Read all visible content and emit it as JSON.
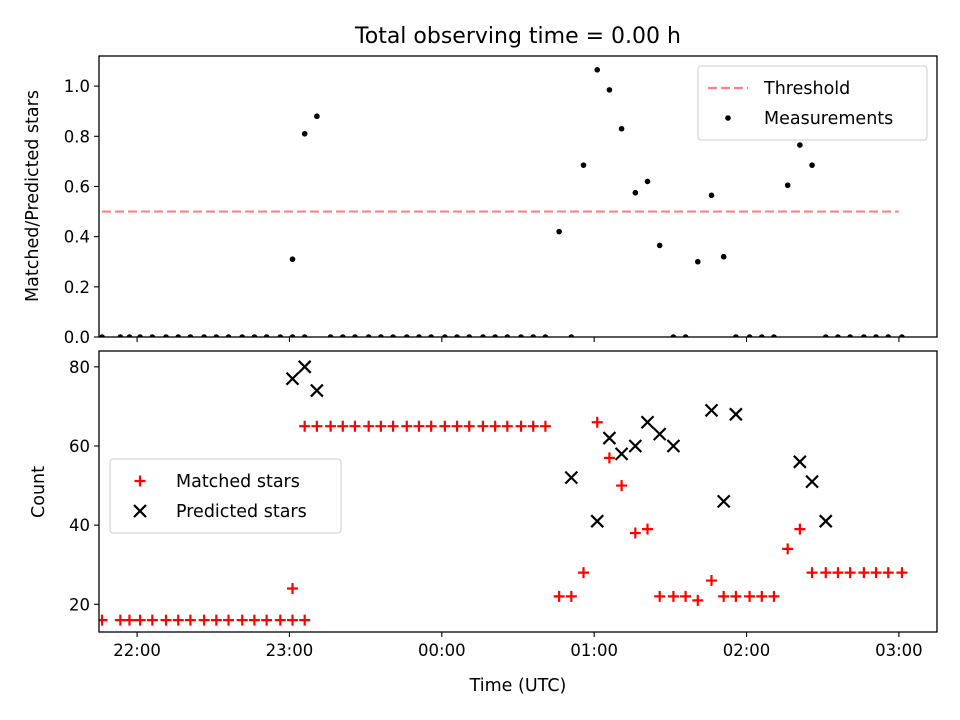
{
  "chart_data": [
    {
      "type": "scatter",
      "title": "Total observing time = 0.00 h",
      "xlabel": "",
      "ylabel": "Matched/Predicted stars",
      "xlim": [
        -2.25,
        3.25
      ],
      "ylim": [
        0,
        1.12
      ],
      "xticks": [
        -2,
        -1,
        0,
        1,
        2,
        3
      ],
      "yticks": [
        0.0,
        0.2,
        0.4,
        0.6,
        0.8,
        1.0
      ],
      "ytick_labels": [
        "0.0",
        "0.2",
        "0.4",
        "0.6",
        "0.8",
        "1.0"
      ],
      "legend_position": "upper right",
      "threshold": {
        "name": "Threshold",
        "value": 0.5,
        "x_range": [
          -2.23,
          3.0
        ],
        "color": "#ff8080",
        "style": "dashed"
      },
      "series": [
        {
          "name": "Measurements",
          "color": "#000000",
          "marker": "dot",
          "x": [
            -2.23,
            -2.11,
            -2.05,
            -1.98,
            -1.9,
            -1.81,
            -1.73,
            -1.65,
            -1.56,
            -1.48,
            -1.4,
            -1.31,
            -1.23,
            -1.15,
            -1.06,
            -0.98,
            -0.9,
            -0.98,
            -0.9,
            -0.82,
            -0.73,
            -0.65,
            -0.57,
            -0.48,
            -0.4,
            -0.32,
            -0.23,
            -0.15,
            -0.07,
            0.02,
            0.1,
            0.18,
            0.27,
            0.35,
            0.43,
            0.52,
            0.6,
            0.68,
            0.77,
            0.85,
            0.93,
            1.02,
            1.1,
            1.18,
            1.27,
            1.35,
            1.43,
            1.52,
            1.6,
            1.68,
            1.77,
            1.85,
            1.93,
            2.02,
            2.1,
            2.18,
            2.27,
            2.35,
            2.43,
            2.52,
            2.6,
            2.68,
            2.77,
            2.85,
            2.93,
            3.02
          ],
          "y": [
            0,
            0,
            0,
            0,
            0,
            0,
            0,
            0,
            0,
            0,
            0,
            0,
            0,
            0,
            0,
            0,
            0,
            0.31,
            0.81,
            0.88,
            0,
            0,
            0,
            0,
            0,
            0,
            0,
            0,
            0,
            0,
            0,
            0,
            0,
            0,
            0,
            0,
            0,
            0,
            0.42,
            0,
            0.685,
            1.065,
            0.985,
            0.83,
            0.575,
            0.62,
            0.365,
            0,
            0,
            0.3,
            0.565,
            0.32,
            0,
            0,
            0,
            0,
            0.605,
            0.765,
            0.685,
            0,
            0,
            0,
            0,
            0,
            0,
            0
          ]
        }
      ]
    },
    {
      "type": "scatter",
      "title": "",
      "xlabel": "Time (UTC)",
      "ylabel": "Count",
      "xlim": [
        -2.25,
        3.25
      ],
      "ylim": [
        13,
        84
      ],
      "xticks": [
        -2,
        -1,
        0,
        1,
        2,
        3
      ],
      "xtick_labels": [
        "22:00",
        "23:00",
        "00:00",
        "01:00",
        "02:00",
        "03:00"
      ],
      "yticks": [
        20,
        40,
        60,
        80
      ],
      "ytick_labels": [
        "20",
        "40",
        "60",
        "80"
      ],
      "legend_position": "center left",
      "series": [
        {
          "name": "Matched stars",
          "color": "#ff0000",
          "marker": "plus",
          "x": [
            -2.23,
            -2.11,
            -2.05,
            -1.98,
            -1.9,
            -1.81,
            -1.73,
            -1.65,
            -1.56,
            -1.48,
            -1.4,
            -1.31,
            -1.23,
            -1.15,
            -1.06,
            -0.98,
            -0.9,
            -0.98,
            -0.9,
            -0.82,
            -0.73,
            -0.65,
            -0.57,
            -0.48,
            -0.4,
            -0.32,
            -0.23,
            -0.15,
            -0.07,
            0.02,
            0.1,
            0.18,
            0.27,
            0.35,
            0.43,
            0.52,
            0.6,
            0.68,
            0.77,
            0.85,
            0.93,
            1.02,
            1.1,
            1.18,
            1.27,
            1.35,
            1.43,
            1.52,
            1.6,
            1.68,
            1.77,
            1.85,
            1.93,
            2.02,
            2.1,
            2.18,
            2.27,
            2.35,
            2.43,
            2.52,
            2.6,
            2.68,
            2.77,
            2.85,
            2.93,
            3.02
          ],
          "y": [
            16,
            16,
            16,
            16,
            16,
            16,
            16,
            16,
            16,
            16,
            16,
            16,
            16,
            16,
            16,
            16,
            16,
            24,
            65,
            65,
            65,
            65,
            65,
            65,
            65,
            65,
            65,
            65,
            65,
            65,
            65,
            65,
            65,
            65,
            65,
            65,
            65,
            65,
            22,
            22,
            28,
            66,
            57,
            50,
            38,
            39,
            22,
            22,
            22,
            21,
            26,
            22,
            22,
            22,
            22,
            22,
            34,
            39,
            28,
            28,
            28,
            28,
            28,
            28,
            28,
            28
          ]
        },
        {
          "name": "Predicted stars",
          "color": "#000000",
          "marker": "x",
          "x": [
            -0.98,
            -0.9,
            -0.82,
            0.85,
            1.02,
            1.1,
            1.18,
            1.27,
            1.35,
            1.43,
            1.52,
            1.77,
            1.85,
            1.93,
            2.35,
            2.43,
            2.52
          ],
          "y": [
            77,
            80,
            74,
            52,
            41,
            62,
            58,
            60,
            66,
            63,
            60,
            69,
            46,
            68,
            56,
            51,
            41
          ]
        }
      ]
    }
  ]
}
